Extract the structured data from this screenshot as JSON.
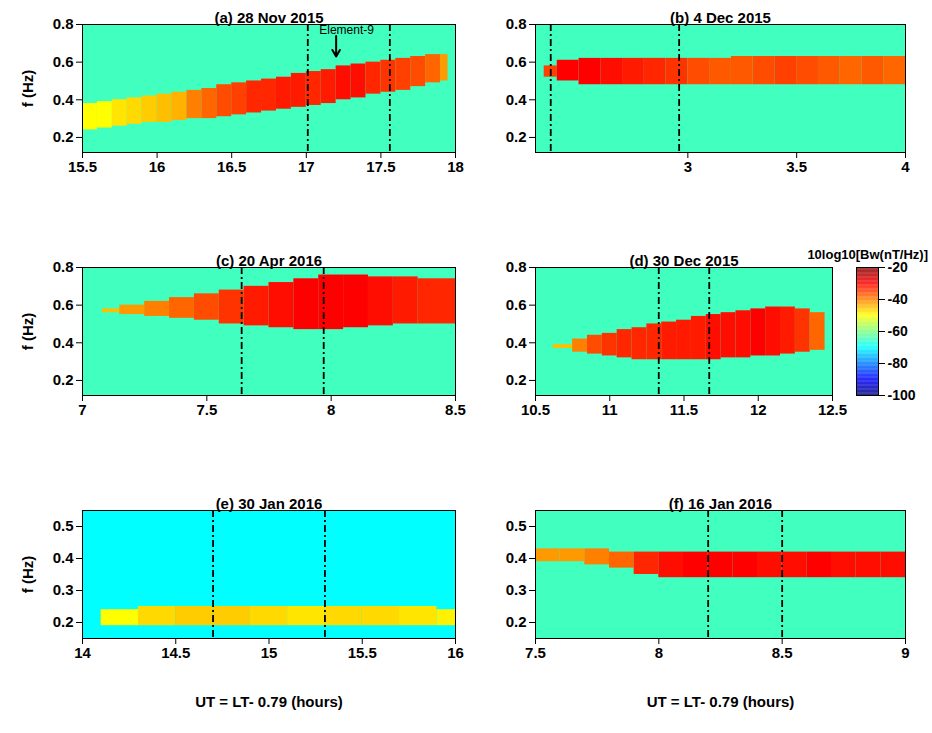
{
  "chart_data": [
    {
      "type": "heatmap",
      "title": "(a) 28 Nov 2015",
      "y_label": "f (Hz)",
      "xlim": [
        15.5,
        18
      ],
      "xticks": [
        15.5,
        16,
        16.5,
        17,
        17.5,
        18
      ],
      "ylim": [
        0.12,
        0.8
      ],
      "yticks": [
        0.2,
        0.4,
        0.6,
        0.8
      ],
      "background_power": -65,
      "band": {
        "time_bins": [
          15.5,
          15.6,
          15.7,
          15.8,
          15.9,
          16.0,
          16.1,
          16.2,
          16.3,
          16.4,
          16.5,
          16.6,
          16.7,
          16.8,
          16.9,
          17.0,
          17.1,
          17.2,
          17.3,
          17.4,
          17.5,
          17.6,
          17.7,
          17.8,
          17.9,
          17.95
        ],
        "f_low": [
          0.24,
          0.25,
          0.26,
          0.27,
          0.28,
          0.28,
          0.29,
          0.3,
          0.3,
          0.31,
          0.32,
          0.33,
          0.34,
          0.35,
          0.36,
          0.37,
          0.38,
          0.4,
          0.41,
          0.43,
          0.44,
          0.45,
          0.47,
          0.49,
          0.5
        ],
        "f_high": [
          0.38,
          0.39,
          0.4,
          0.41,
          0.42,
          0.43,
          0.44,
          0.45,
          0.46,
          0.48,
          0.49,
          0.5,
          0.51,
          0.52,
          0.54,
          0.55,
          0.56,
          0.58,
          0.59,
          0.6,
          0.61,
          0.62,
          0.63,
          0.64,
          0.64
        ],
        "power": [
          -50,
          -50,
          -48,
          -47,
          -46,
          -45,
          -44,
          -40,
          -38,
          -36,
          -35,
          -33,
          -33,
          -32,
          -32,
          -33,
          -32,
          -31,
          -31,
          -33,
          -34,
          -35,
          -36,
          -38,
          -42
        ]
      },
      "dashed_lines": [
        17.01,
        17.56
      ],
      "annotation": {
        "text": "Element-9",
        "x": 17.2,
        "y": 0.63,
        "text_x": 17.27,
        "text_y": 0.75
      }
    },
    {
      "type": "heatmap",
      "title": "(b) 4 Dec 2015",
      "xlim": [
        2.3,
        4
      ],
      "xticks": [
        3,
        3.5,
        4
      ],
      "ylim": [
        0.12,
        0.8
      ],
      "yticks": [
        0.2,
        0.4,
        0.6,
        0.8
      ],
      "background_power": -65,
      "band": {
        "time_bins": [
          2.34,
          2.4,
          2.5,
          2.6,
          2.7,
          2.8,
          2.9,
          3.0,
          3.1,
          3.2,
          3.3,
          3.4,
          3.5,
          3.6,
          3.7,
          3.8,
          3.9,
          4.0
        ],
        "f_low": [
          0.52,
          0.5,
          0.48,
          0.48,
          0.48,
          0.48,
          0.48,
          0.48,
          0.48,
          0.48,
          0.48,
          0.48,
          0.48,
          0.48,
          0.48,
          0.48,
          0.48
        ],
        "f_high": [
          0.58,
          0.61,
          0.62,
          0.62,
          0.62,
          0.62,
          0.62,
          0.62,
          0.62,
          0.63,
          0.63,
          0.63,
          0.63,
          0.63,
          0.63,
          0.63,
          0.63
        ],
        "power": [
          -35,
          -30,
          -30,
          -31,
          -32,
          -33,
          -34,
          -36,
          -37,
          -37,
          -36,
          -35,
          -36,
          -37,
          -38,
          -37,
          -38
        ]
      },
      "dashed_lines": [
        2.37,
        2.96
      ]
    },
    {
      "type": "heatmap",
      "title": "(c) 20 Apr 2016",
      "y_label": "f (Hz)",
      "xlim": [
        7,
        8.5
      ],
      "xticks": [
        7,
        7.5,
        8,
        8.5
      ],
      "ylim": [
        0.12,
        0.8
      ],
      "yticks": [
        0.2,
        0.4,
        0.6,
        0.8
      ],
      "background_power": -65,
      "band": {
        "time_bins": [
          7.08,
          7.15,
          7.25,
          7.35,
          7.45,
          7.55,
          7.65,
          7.75,
          7.85,
          7.95,
          8.05,
          8.15,
          8.25,
          8.35,
          8.5
        ],
        "f_low": [
          0.56,
          0.55,
          0.54,
          0.53,
          0.52,
          0.5,
          0.49,
          0.48,
          0.47,
          0.47,
          0.48,
          0.49,
          0.5,
          0.5
        ],
        "f_high": [
          0.58,
          0.6,
          0.62,
          0.64,
          0.66,
          0.68,
          0.7,
          0.72,
          0.74,
          0.76,
          0.76,
          0.75,
          0.75,
          0.74
        ],
        "power": [
          -45,
          -42,
          -40,
          -38,
          -36,
          -34,
          -32,
          -31,
          -30,
          -30,
          -30,
          -31,
          -32,
          -33
        ]
      },
      "dashed_lines": [
        7.64,
        7.97
      ]
    },
    {
      "type": "heatmap",
      "title": "(d) 30 Dec 2015",
      "xlim": [
        10.5,
        12.5
      ],
      "xticks": [
        10.5,
        11,
        11.5,
        12,
        12.5
      ],
      "ylim": [
        0.12,
        0.8
      ],
      "yticks": [
        0.2,
        0.4,
        0.6,
        0.8
      ],
      "background_power": -65,
      "band": {
        "time_bins": [
          10.62,
          10.75,
          10.85,
          10.95,
          11.05,
          11.15,
          11.25,
          11.35,
          11.45,
          11.55,
          11.65,
          11.75,
          11.85,
          11.95,
          12.05,
          12.15,
          12.25,
          12.35,
          12.45
        ],
        "f_low": [
          0.37,
          0.35,
          0.34,
          0.33,
          0.32,
          0.31,
          0.31,
          0.31,
          0.31,
          0.31,
          0.31,
          0.32,
          0.32,
          0.33,
          0.33,
          0.34,
          0.35,
          0.36
        ],
        "f_high": [
          0.39,
          0.42,
          0.44,
          0.45,
          0.47,
          0.48,
          0.5,
          0.51,
          0.52,
          0.54,
          0.55,
          0.56,
          0.57,
          0.58,
          0.59,
          0.59,
          0.58,
          0.56
        ],
        "power": [
          -45,
          -40,
          -36,
          -34,
          -33,
          -33,
          -33,
          -32,
          -32,
          -32,
          -31,
          -31,
          -31,
          -30,
          -31,
          -32,
          -34,
          -38
        ]
      },
      "dashed_lines": [
        11.33,
        11.67
      ],
      "colorbar": {
        "label": "10log10[Bw(nT/Hz)]",
        "range": [
          -100,
          -20
        ],
        "ticks": [
          -20,
          -40,
          -60,
          -80,
          -100
        ]
      }
    },
    {
      "type": "heatmap",
      "title": "(e) 30 Jan 2016",
      "y_label": "f (Hz)",
      "x_label": "UT = LT- 0.79 (hours)",
      "xlim": [
        14,
        16
      ],
      "xticks": [
        14,
        14.5,
        15,
        15.5,
        16
      ],
      "ylim": [
        0.15,
        0.55
      ],
      "yticks": [
        0.2,
        0.3,
        0.4,
        0.5
      ],
      "background_power": -70,
      "band": {
        "time_bins": [
          14.1,
          14.3,
          14.5,
          14.7,
          14.9,
          15.1,
          15.3,
          15.5,
          15.7,
          15.9,
          16.0
        ],
        "f_low": [
          0.19,
          0.19,
          0.19,
          0.19,
          0.19,
          0.19,
          0.19,
          0.19,
          0.19,
          0.19
        ],
        "f_high": [
          0.24,
          0.25,
          0.25,
          0.25,
          0.25,
          0.25,
          0.25,
          0.25,
          0.25,
          0.24
        ],
        "power": [
          -50,
          -47,
          -46,
          -46,
          -47,
          -48,
          -47,
          -47,
          -48,
          -49
        ]
      },
      "dashed_lines": [
        14.7,
        15.3
      ]
    },
    {
      "type": "heatmap",
      "title": "(f) 16 Jan 2016",
      "x_label": "UT = LT- 0.79 (hours)",
      "xlim": [
        7.5,
        9
      ],
      "xticks": [
        7.5,
        8,
        8.5,
        9
      ],
      "ylim": [
        0.15,
        0.55
      ],
      "yticks": [
        0.2,
        0.3,
        0.4,
        0.5
      ],
      "background_power": -65,
      "band": {
        "time_bins": [
          7.5,
          7.6,
          7.7,
          7.8,
          7.9,
          8.0,
          8.1,
          8.2,
          8.3,
          8.4,
          8.5,
          8.6,
          8.7,
          8.8,
          8.9,
          9.0
        ],
        "f_low": [
          0.39,
          0.39,
          0.38,
          0.37,
          0.35,
          0.34,
          0.34,
          0.34,
          0.34,
          0.34,
          0.34,
          0.34,
          0.34,
          0.34,
          0.34
        ],
        "f_high": [
          0.43,
          0.43,
          0.43,
          0.42,
          0.42,
          0.42,
          0.42,
          0.42,
          0.42,
          0.42,
          0.42,
          0.42,
          0.42,
          0.42,
          0.42
        ],
        "power": [
          -42,
          -42,
          -40,
          -38,
          -33,
          -31,
          -30,
          -30,
          -30,
          -31,
          -31,
          -30,
          -31,
          -31,
          -31
        ]
      },
      "dashed_lines": [
        8.2,
        8.5
      ]
    }
  ]
}
